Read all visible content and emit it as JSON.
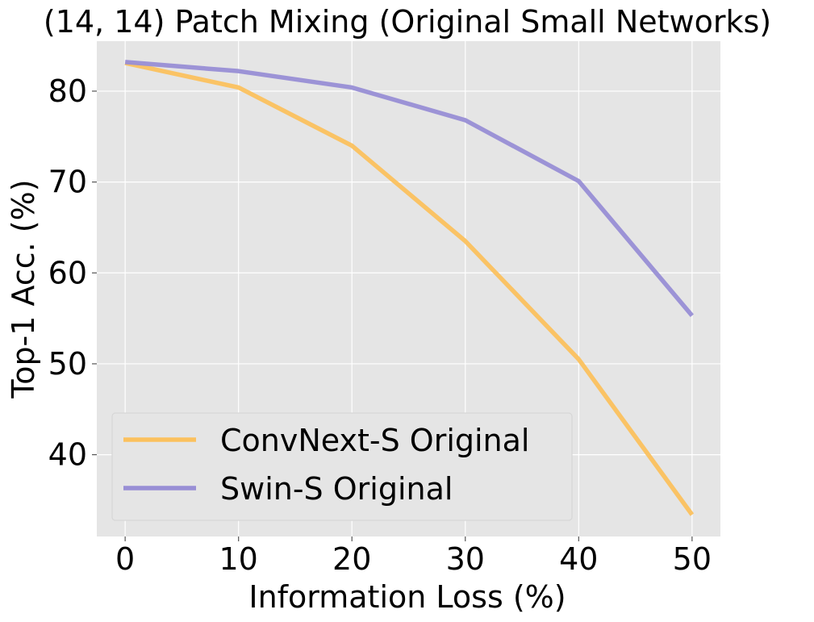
{
  "chart_data": {
    "type": "line",
    "title": "(14, 14) Patch Mixing (Original Small Networks)",
    "xlabel": "Information Loss (%)",
    "ylabel": "Top-1 Acc. (%)",
    "x": [
      0,
      10,
      20,
      30,
      40,
      50
    ],
    "xticks": [
      0,
      10,
      20,
      30,
      40,
      50
    ],
    "yticks": [
      40,
      50,
      60,
      70,
      80
    ],
    "xlim": [
      -2.5,
      52.5
    ],
    "ylim": [
      31.0,
      85.5
    ],
    "grid": true,
    "legend_position": "lower-left",
    "background_color": "#e5e5e5",
    "series": [
      {
        "name": "ConvNext-S Original",
        "color": "#fbc15e",
        "values": [
          83.1,
          80.4,
          74.0,
          63.5,
          50.5,
          33.4
        ]
      },
      {
        "name": "Swin-S Original",
        "color": "#988ed5",
        "values": [
          83.2,
          82.2,
          80.4,
          76.8,
          70.1,
          55.3
        ]
      }
    ]
  }
}
